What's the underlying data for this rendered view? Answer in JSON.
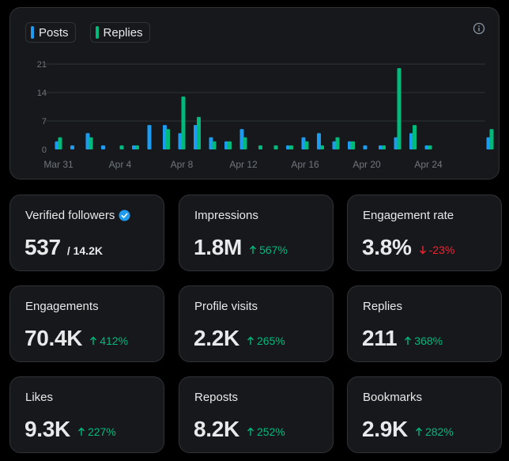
{
  "colors": {
    "posts": "#1d9bf0",
    "replies": "#00ba7c",
    "up": "#00ba7c",
    "down": "#f4212e",
    "verified": "#1d9bf0"
  },
  "legend": {
    "posts_label": "Posts",
    "replies_label": "Replies"
  },
  "info_icon": "info-circle-icon",
  "chart_data": {
    "type": "bar",
    "title": "",
    "xlabel": "",
    "ylabel": "",
    "ylim": [
      0,
      21
    ],
    "yticks": [
      0,
      7,
      14,
      21
    ],
    "categories": [
      "Mar 31",
      "Apr 1",
      "Apr 2",
      "Apr 3",
      "Apr 4",
      "Apr 5",
      "Apr 6",
      "Apr 7",
      "Apr 8",
      "Apr 9",
      "Apr 10",
      "Apr 11",
      "Apr 12",
      "Apr 13",
      "Apr 14",
      "Apr 15",
      "Apr 16",
      "Apr 17",
      "Apr 18",
      "Apr 19",
      "Apr 20",
      "Apr 21",
      "Apr 22",
      "Apr 23",
      "Apr 24",
      "Apr 25",
      "Apr 26",
      "Apr 27",
      "Apr 28"
    ],
    "xtick_labels": [
      "Mar 31",
      "Apr 4",
      "Apr 8",
      "Apr 12",
      "Apr 16",
      "Apr 20",
      "Apr 24"
    ],
    "xtick_indices": [
      0,
      4,
      8,
      12,
      16,
      20,
      24
    ],
    "series": [
      {
        "name": "Posts",
        "values": [
          2,
          1,
          4,
          1,
          0,
          1,
          6,
          6,
          4,
          6,
          3,
          2,
          5,
          0,
          0,
          1,
          3,
          4,
          2,
          2,
          1,
          1,
          3,
          4,
          1,
          0,
          0,
          0,
          3
        ]
      },
      {
        "name": "Replies",
        "values": [
          3,
          0,
          3,
          0,
          1,
          1,
          0,
          5,
          13,
          8,
          2,
          2,
          3,
          1,
          1,
          1,
          2,
          1,
          3,
          2,
          0,
          1,
          20,
          6,
          1,
          0,
          0,
          0,
          5
        ]
      }
    ]
  },
  "stats": [
    {
      "label": "Verified followers",
      "value": "537",
      "sub": "/ 14.2K",
      "verified_icon": "verified-badge-icon"
    },
    {
      "label": "Impressions",
      "value": "1.8M",
      "change": "567%",
      "direction": "up"
    },
    {
      "label": "Engagement rate",
      "value": "3.8%",
      "change": "-23%",
      "direction": "down"
    },
    {
      "label": "Engagements",
      "value": "70.4K",
      "change": "412%",
      "direction": "up"
    },
    {
      "label": "Profile visits",
      "value": "2.2K",
      "change": "265%",
      "direction": "up"
    },
    {
      "label": "Replies",
      "value": "211",
      "change": "368%",
      "direction": "up"
    },
    {
      "label": "Likes",
      "value": "9.3K",
      "change": "227%",
      "direction": "up"
    },
    {
      "label": "Reposts",
      "value": "8.2K",
      "change": "252%",
      "direction": "up"
    },
    {
      "label": "Bookmarks",
      "value": "2.9K",
      "change": "282%",
      "direction": "up"
    }
  ]
}
